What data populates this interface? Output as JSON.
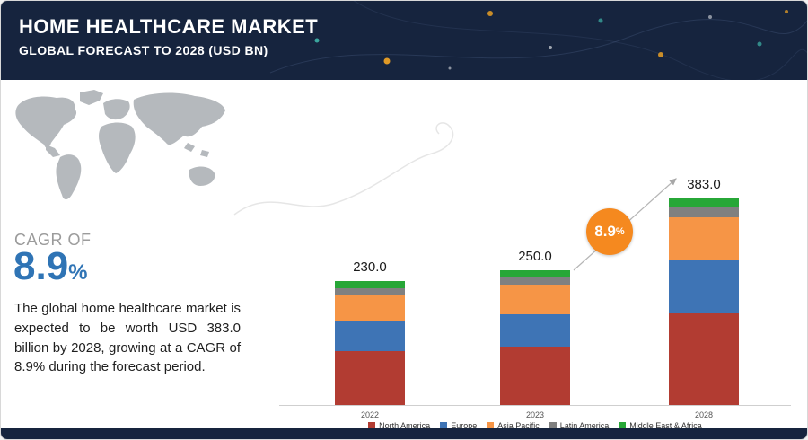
{
  "header": {
    "title": "HOME HEALTHCARE MARKET",
    "subtitle": "GLOBAL FORECAST TO 2028 (USD BN)"
  },
  "sidebar": {
    "cagr_label": "CAGR OF",
    "cagr_value": "8.9",
    "cagr_pct": "%",
    "description": "The global home healthcare market is expected to be worth USD 383.0 billion by 2028, growing at a CAGR of 8.9% during the forecast period."
  },
  "chart": {
    "badge_value": "8.9",
    "badge_pct": "%"
  },
  "chart_data": {
    "type": "bar",
    "stacked": true,
    "title": "Home Healthcare Market, Global Forecast to 2028 (USD BN)",
    "categories": [
      "2022",
      "2023",
      "2028"
    ],
    "totals": [
      230.0,
      250.0,
      383.0
    ],
    "total_labels": [
      "230.0",
      "250.0",
      "383.0"
    ],
    "series": [
      {
        "name": "North America",
        "color": "#b23c32",
        "values": [
          100,
          108,
          170
        ]
      },
      {
        "name": "Europe",
        "color": "#3e74b5",
        "values": [
          55,
          60,
          100
        ]
      },
      {
        "name": "Asia Pacific",
        "color": "#f69546",
        "values": [
          50,
          55,
          78
        ]
      },
      {
        "name": "Latin America",
        "color": "#808080",
        "values": [
          12,
          13,
          20
        ]
      },
      {
        "name": "Middle East & Africa",
        "color": "#27a737",
        "values": [
          13,
          14,
          15
        ]
      }
    ],
    "ylim": [
      0,
      400
    ],
    "grid": false,
    "legend_position": "bottom",
    "annotation": "8.9% CAGR arrow from 2023 to 2028"
  }
}
